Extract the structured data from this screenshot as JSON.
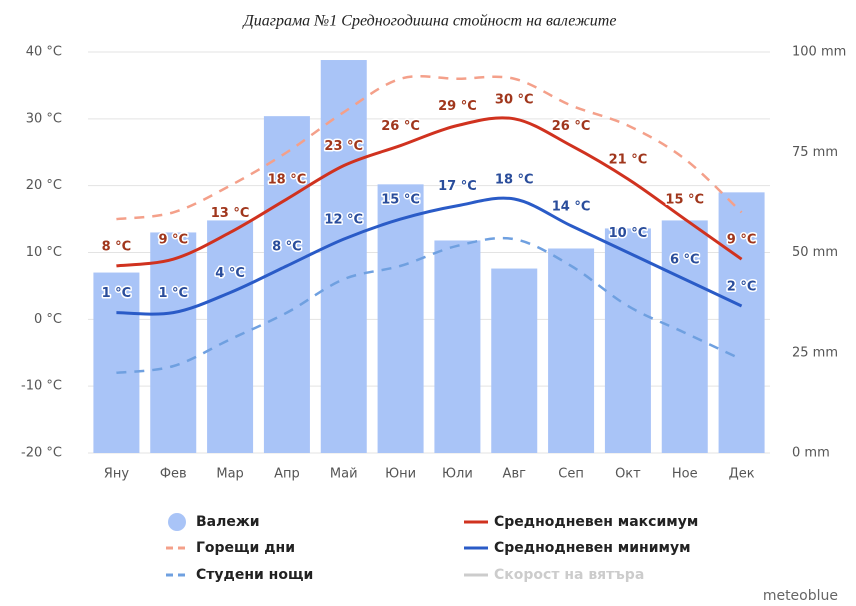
{
  "chart_data": {
    "type": "climate",
    "title": "Диаграма  №1 Средногодишна стойност на валежите",
    "categories": [
      "Яну",
      "Фев",
      "Мар",
      "Апр",
      "Май",
      "Юни",
      "Юли",
      "Авг",
      "Сеп",
      "Окт",
      "Ное",
      "Дек"
    ],
    "ylim": [
      -20,
      40
    ],
    "yticks": [
      {
        "value": -20,
        "label": "-20 °C"
      },
      {
        "value": -10,
        "label": "-10 °C"
      },
      {
        "value": 0,
        "label": "0 °C"
      },
      {
        "value": 10,
        "label": "10 °C"
      },
      {
        "value": 20,
        "label": "20 °C"
      },
      {
        "value": 30,
        "label": "30 °C"
      },
      {
        "value": 40,
        "label": "40 °C"
      }
    ],
    "y2lim": [
      0,
      100
    ],
    "y2ticks": [
      {
        "value": 0,
        "label": "0 mm"
      },
      {
        "value": 25,
        "label": "25 mm"
      },
      {
        "value": 50,
        "label": "50 mm"
      },
      {
        "value": 75,
        "label": "75 mm"
      },
      {
        "value": 100,
        "label": "100 mm"
      }
    ],
    "grid": true,
    "series": [
      {
        "name": "Валежи",
        "kind": "bar",
        "axis": "y2",
        "color": "#a9c4f7",
        "values": [
          45,
          55,
          58,
          84,
          98,
          67,
          53,
          46,
          51,
          56,
          58,
          65
        ]
      },
      {
        "name": "Горещи дни",
        "kind": "dashed",
        "color": "#f4a08a",
        "values": [
          15,
          16,
          20,
          25,
          31,
          36,
          36,
          36,
          32,
          29,
          24,
          16
        ]
      },
      {
        "name": "Студени нощи",
        "kind": "dashed",
        "color": "#6fa0e0",
        "values": [
          -8,
          -7,
          -3,
          1,
          6,
          8,
          11,
          12,
          8,
          2,
          -2,
          -6
        ]
      },
      {
        "name": "Среднодневен максимум",
        "kind": "line",
        "color": "#d0321f",
        "label_color": "#a0361c",
        "values": [
          8,
          9,
          13,
          18,
          23,
          26,
          29,
          30,
          26,
          21,
          15,
          9
        ],
        "value_labels": [
          "8 °C",
          "9 °C",
          "13 °C",
          "18 °C",
          "23 °C",
          "26 °C",
          "29 °C",
          "30 °C",
          "26 °C",
          "21 °C",
          "15 °C",
          "9 °C"
        ]
      },
      {
        "name": "Среднодневен минимум",
        "kind": "line",
        "color": "#2a5bc7",
        "label_color": "#2a4d9b",
        "values": [
          1,
          1,
          4,
          8,
          12,
          15,
          17,
          18,
          14,
          10,
          6,
          2
        ],
        "value_labels": [
          "1 °C",
          "1 °C",
          "4 °C",
          "8 °C",
          "12 °C",
          "15 °C",
          "17 °C",
          "18 °C",
          "14 °C",
          "10 °C",
          "6 °C",
          "2 °C"
        ]
      },
      {
        "name": "Скорост на вятъра",
        "kind": "line",
        "color": "#cccccc",
        "hidden": true
      }
    ],
    "credit": "meteoblue"
  }
}
